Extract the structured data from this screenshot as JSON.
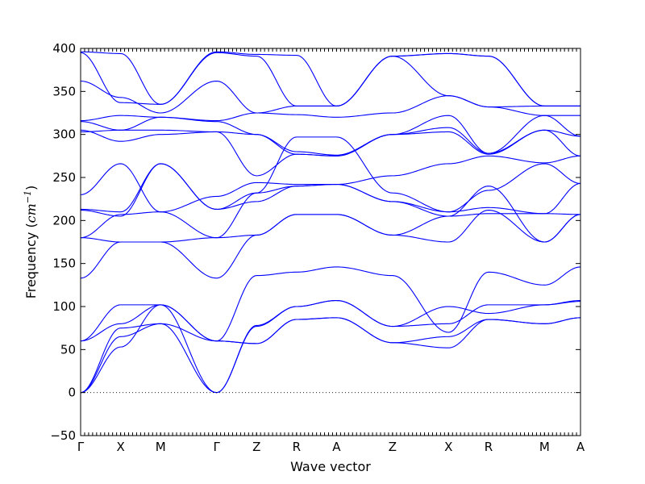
{
  "chart_data": {
    "type": "line",
    "xlabel": "Wave vector",
    "ylabel_main": "Frequency (",
    "ylabel_math": "cm",
    "ylabel_sup": "−1",
    "ylabel_close": ")",
    "ylim": [
      -50,
      400
    ],
    "xlim": [
      0,
      12.5
    ],
    "grid": false,
    "line_color": "#0000ff",
    "zero_line": true,
    "y_ticks": [
      -50,
      0,
      50,
      100,
      150,
      200,
      250,
      300,
      350,
      400
    ],
    "y_tick_labels": [
      "−50",
      "0",
      "50",
      "100",
      "150",
      "200",
      "250",
      "300",
      "350",
      "400"
    ],
    "high_symmetry_points": [
      {
        "label": "Γ",
        "x": 0
      },
      {
        "label": "X",
        "x": 1
      },
      {
        "label": "M",
        "x": 2
      },
      {
        "label": "Γ",
        "x": 3.4
      },
      {
        "label": "Z",
        "x": 4.4
      },
      {
        "label": "R",
        "x": 5.4
      },
      {
        "label": "A",
        "x": 6.4
      },
      {
        "label": "Z",
        "x": 7.8
      },
      {
        "label": "X",
        "x": 9.2
      },
      {
        "label": "R",
        "x": 10.2
      },
      {
        "label": "M",
        "x": 11.6
      },
      {
        "label": "A",
        "x": 12.5
      }
    ],
    "series": [
      {
        "values": [
          0,
          53,
          102,
          60,
          57,
          85,
          87,
          58,
          52,
          85,
          80,
          87
        ]
      },
      {
        "values": [
          0,
          65,
          80,
          60,
          57,
          85,
          87,
          58,
          65,
          85,
          80,
          87
        ]
      },
      {
        "values": [
          0,
          75,
          80,
          0,
          77,
          100,
          107,
          77,
          80,
          102,
          102,
          107
        ]
      },
      {
        "values": [
          60,
          80,
          102,
          0,
          78,
          100,
          107,
          77,
          100,
          92,
          102,
          106
        ]
      },
      {
        "values": [
          60,
          102,
          102,
          60,
          136,
          140,
          146,
          136,
          70,
          140,
          125,
          146
        ]
      },
      {
        "values": [
          133,
          175,
          175,
          133,
          183,
          207,
          207,
          183,
          175,
          212,
          175,
          207
        ]
      },
      {
        "values": [
          180,
          175,
          175,
          180,
          183,
          207,
          207,
          183,
          205,
          240,
          175,
          207
        ]
      },
      {
        "values": [
          180,
          207,
          210,
          180,
          232,
          240,
          242,
          222,
          205,
          208,
          208,
          207
        ]
      },
      {
        "values": [
          212,
          205,
          266,
          213,
          222,
          240,
          242,
          222,
          210,
          215,
          208,
          243
        ]
      },
      {
        "values": [
          213,
          210,
          266,
          213,
          232,
          297,
          297,
          232,
          210,
          235,
          266,
          243
        ]
      },
      {
        "values": [
          230,
          266,
          210,
          228,
          244,
          242,
          242,
          252,
          266,
          275,
          267,
          275
        ]
      },
      {
        "values": [
          305,
          292,
          300,
          303,
          252,
          277,
          275,
          300,
          303,
          277,
          305,
          275
        ]
      },
      {
        "values": [
          303,
          305,
          305,
          303,
          300,
          277,
          275,
          300,
          308,
          278,
          305,
          298
        ]
      },
      {
        "values": [
          315,
          305,
          320,
          315,
          300,
          280,
          276,
          300,
          322,
          278,
          322,
          298
        ]
      },
      {
        "values": [
          316,
          322,
          320,
          316,
          325,
          323,
          320,
          325,
          345,
          332,
          322,
          322
        ]
      },
      {
        "values": [
          362,
          343,
          325,
          362,
          325,
          333,
          333,
          391,
          345,
          332,
          333,
          333
        ]
      },
      {
        "values": [
          395,
          337,
          335,
          395,
          391,
          333,
          333,
          391,
          394,
          391,
          333,
          333
        ]
      },
      {
        "values": [
          396,
          394,
          335,
          396,
          393,
          392,
          333,
          391,
          394,
          391,
          333,
          333
        ]
      }
    ]
  }
}
